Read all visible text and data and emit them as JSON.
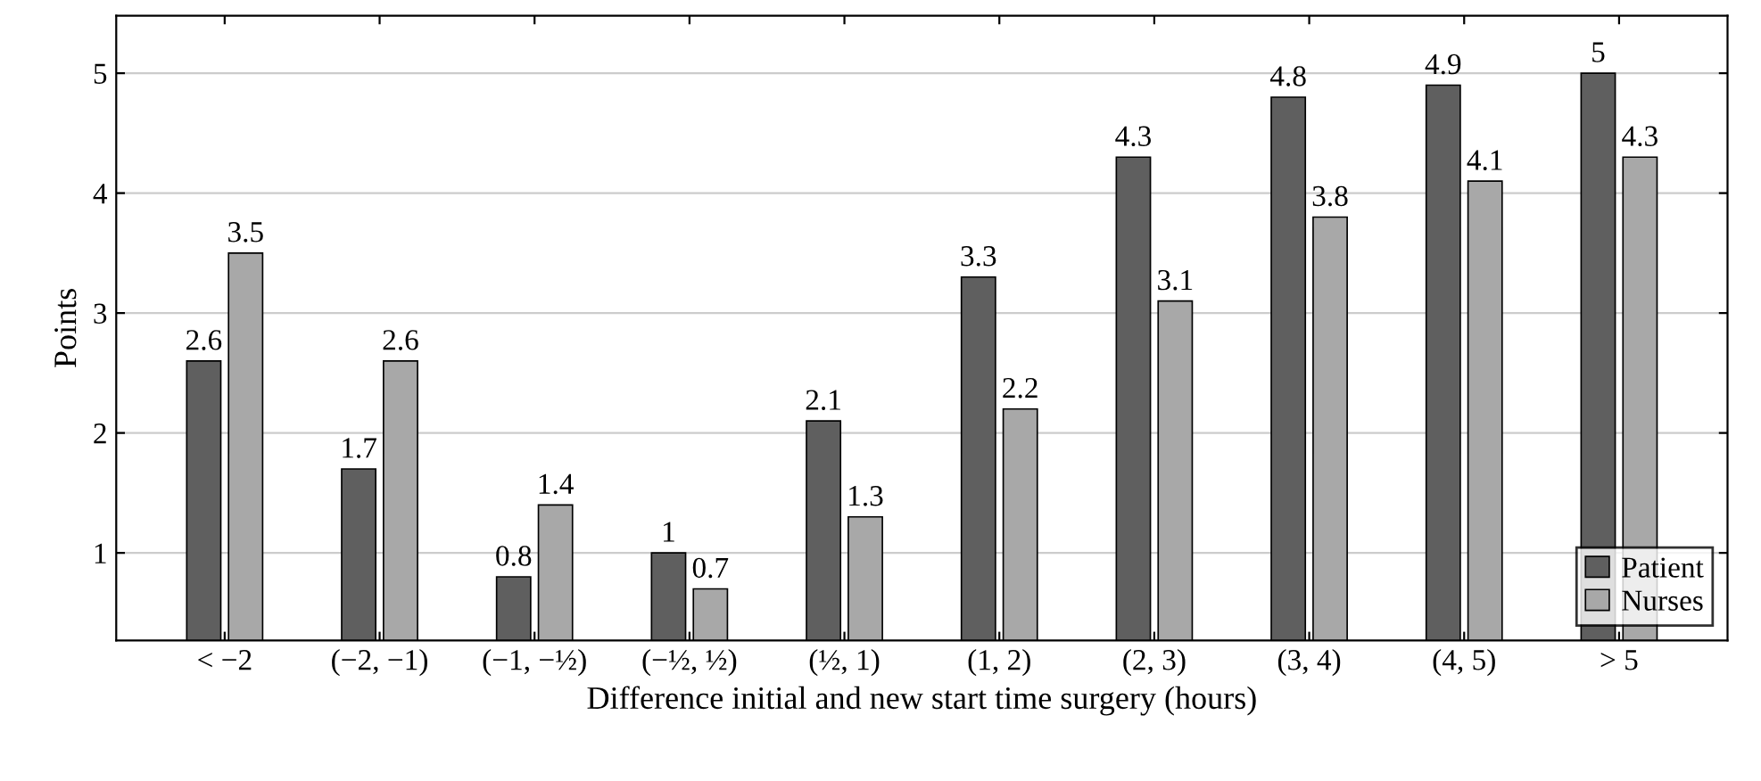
{
  "chart_data": {
    "type": "bar",
    "xlabel": "Difference initial and new start time surgery (hours)",
    "ylabel": "Points",
    "categories": [
      "< −2",
      "(−2, −1)",
      "(−1, −½)",
      "(−½, ½)",
      "(½, 1)",
      "(1, 2)",
      "(2, 3)",
      "(3, 4)",
      "(4, 5)",
      "> 5"
    ],
    "series": [
      {
        "name": "Patient",
        "color": "#5f5f5f",
        "values": [
          2.6,
          1.7,
          0.8,
          1,
          2.1,
          3.3,
          4.3,
          4.8,
          4.9,
          5
        ]
      },
      {
        "name": "Nurses",
        "color": "#a8a8a8",
        "values": [
          3.5,
          2.6,
          1.4,
          0.7,
          1.3,
          2.2,
          3.1,
          3.8,
          4.1,
          4.3
        ]
      }
    ],
    "ylim": [
      0.27,
      5.48
    ],
    "yticks": [
      1,
      2,
      3,
      4,
      5
    ],
    "grid": "y",
    "legend": "bottom right",
    "data_labels": true
  }
}
